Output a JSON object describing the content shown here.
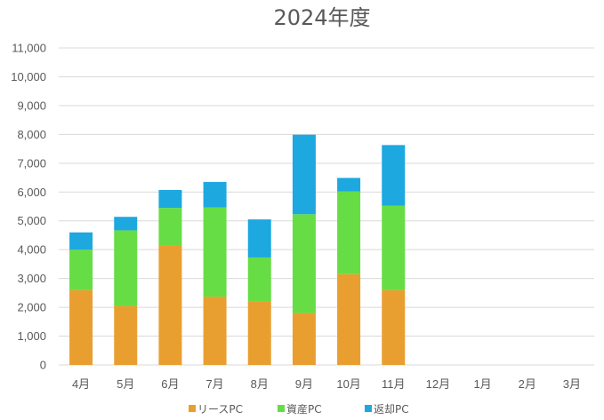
{
  "chart_data": {
    "type": "bar",
    "stacked": true,
    "title": "2024年度",
    "xlabel": "",
    "ylabel": "",
    "categories": [
      "4月",
      "5月",
      "6月",
      "7月",
      "8月",
      "9月",
      "10月",
      "11月",
      "12月",
      "1月",
      "2月",
      "3月"
    ],
    "series": [
      {
        "name": "リースPC",
        "color": "#E99F30",
        "values": [
          2600,
          2050,
          4130,
          2370,
          2200,
          1800,
          3150,
          2600,
          null,
          null,
          null,
          null
        ]
      },
      {
        "name": "資産PC",
        "color": "#66DD44",
        "values": [
          1400,
          2620,
          1320,
          3100,
          1530,
          3430,
          2870,
          2930,
          null,
          null,
          null,
          null
        ]
      },
      {
        "name": "返却PC",
        "color": "#1DA8E0",
        "values": [
          600,
          470,
          620,
          880,
          1320,
          2760,
          470,
          2100,
          null,
          null,
          null,
          null
        ]
      }
    ],
    "ylim": [
      0,
      11000
    ],
    "yticks": [
      0,
      1000,
      2000,
      3000,
      4000,
      5000,
      6000,
      7000,
      8000,
      9000,
      10000,
      11000
    ],
    "ytick_labels": [
      "0",
      "1,000",
      "2,000",
      "3,000",
      "4,000",
      "5,000",
      "6,000",
      "7,000",
      "8,000",
      "9,000",
      "10,000",
      "11,000"
    ],
    "grid": true,
    "legend_position": "bottom"
  }
}
